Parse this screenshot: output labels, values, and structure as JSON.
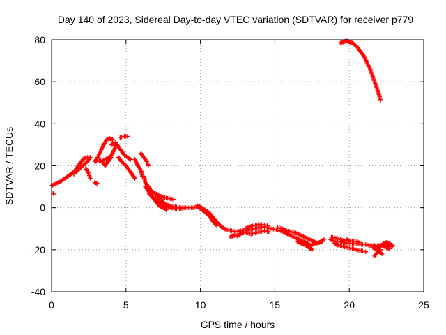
{
  "chart_data": {
    "type": "scatter",
    "title": "Day 140 of 2023, Sidereal Day-to-day VTEC variation (SDTVAR) for receiver p779",
    "xlabel": "GPS time / hours",
    "ylabel": "SDTVAR / TECUs",
    "xlim": [
      0,
      25
    ],
    "ylim": [
      -40,
      80
    ],
    "xticks": [
      "0",
      "5",
      "10",
      "15",
      "20",
      "25"
    ],
    "yticks": [
      "-40",
      "-20",
      "0",
      "20",
      "40",
      "60",
      "80"
    ],
    "grid": true,
    "marker": "plus",
    "series_color": "#ff0000",
    "series": [
      {
        "name": "SDTVAR",
        "tracks": [
          [
            [
              0.0,
              10.5
            ],
            [
              0.3,
              11.5
            ],
            [
              0.6,
              12.5
            ],
            [
              0.9,
              14
            ],
            [
              1.2,
              15.5
            ],
            [
              1.5,
              17
            ],
            [
              1.7,
              19
            ],
            [
              1.9,
              21
            ],
            [
              2.1,
              23
            ],
            [
              2.3,
              24
            ],
            [
              2.5,
              24
            ]
          ],
          [
            [
              1.5,
              16
            ],
            [
              1.8,
              18
            ],
            [
              2.1,
              20
            ],
            [
              2.4,
              22
            ],
            [
              2.6,
              24
            ]
          ],
          [
            [
              0.1,
              7
            ],
            [
              0.15,
              6.5
            ]
          ],
          [
            [
              2.3,
              19
            ],
            [
              2.5,
              16
            ],
            [
              2.6,
              14
            ]
          ],
          [
            [
              2.9,
              12
            ],
            [
              3.1,
              11.5
            ]
          ],
          [
            [
              2.9,
              22
            ],
            [
              3.1,
              24
            ],
            [
              3.3,
              27
            ],
            [
              3.5,
              30
            ],
            [
              3.7,
              32.5
            ],
            [
              3.9,
              33
            ],
            [
              4.1,
              32.5
            ]
          ],
          [
            [
              3.0,
              22
            ],
            [
              3.3,
              22.5
            ],
            [
              3.6,
              23
            ],
            [
              3.9,
              24
            ],
            [
              4.1,
              26
            ],
            [
              4.3,
              29
            ],
            [
              4.2,
              31
            ],
            [
              4.0,
              30
            ]
          ],
          [
            [
              3.4,
              22
            ],
            [
              3.6,
              20
            ],
            [
              3.8,
              22
            ],
            [
              4.0,
              24
            ]
          ],
          [
            [
              4.6,
              33.5
            ],
            [
              4.9,
              34
            ],
            [
              5.1,
              34
            ]
          ],
          [
            [
              4.5,
              24
            ],
            [
              4.7,
              22
            ],
            [
              5.0,
              20
            ],
            [
              5.2,
              18
            ],
            [
              5.4,
              16
            ]
          ],
          [
            [
              4.3,
              31
            ],
            [
              4.6,
              28
            ],
            [
              4.9,
              25
            ],
            [
              5.1,
              24
            ],
            [
              5.3,
              23
            ]
          ],
          [
            [
              5.6,
              23
            ],
            [
              5.8,
              20
            ],
            [
              6.0,
              18
            ],
            [
              6.1,
              15
            ]
          ],
          [
            [
              6.0,
              26
            ],
            [
              6.2,
              24
            ],
            [
              6.4,
              22
            ],
            [
              6.5,
              20
            ]
          ],
          [
            [
              5.2,
              18
            ],
            [
              5.4,
              16
            ],
            [
              5.6,
              14
            ]
          ],
          [
            [
              6.2,
              15
            ],
            [
              6.3,
              12
            ],
            [
              6.5,
              10
            ],
            [
              6.7,
              8
            ],
            [
              6.9,
              7
            ],
            [
              7.2,
              6
            ],
            [
              7.5,
              5
            ],
            [
              7.8,
              4.5
            ],
            [
              8.2,
              4
            ]
          ],
          [
            [
              6.3,
              10
            ],
            [
              6.5,
              8
            ],
            [
              6.7,
              6
            ],
            [
              6.9,
              4
            ],
            [
              7.1,
              2
            ],
            [
              7.3,
              0.5
            ],
            [
              7.5,
              0
            ],
            [
              7.7,
              -1
            ]
          ],
          [
            [
              6.5,
              7
            ],
            [
              6.8,
              5
            ],
            [
              7.1,
              3
            ],
            [
              7.4,
              2
            ],
            [
              7.7,
              1
            ]
          ],
          [
            [
              7.0,
              6
            ],
            [
              7.3,
              4
            ],
            [
              7.6,
              2
            ],
            [
              7.9,
              1
            ],
            [
              8.3,
              0.5
            ],
            [
              8.7,
              0
            ],
            [
              9.1,
              0
            ],
            [
              9.5,
              0
            ],
            [
              9.8,
              0.5
            ]
          ],
          [
            [
              7.6,
              1
            ],
            [
              8.0,
              0
            ],
            [
              8.4,
              -0.5
            ],
            [
              8.8,
              -0.5
            ]
          ],
          [
            [
              9.8,
              1
            ],
            [
              10.1,
              0
            ],
            [
              10.3,
              -1
            ],
            [
              10.6,
              -2.5
            ],
            [
              10.8,
              -4
            ],
            [
              11.0,
              -6
            ],
            [
              11.2,
              -7.5
            ],
            [
              11.4,
              -9
            ],
            [
              11.6,
              -10
            ],
            [
              11.8,
              -10.5
            ],
            [
              12.1,
              -11
            ],
            [
              12.4,
              -11.5
            ],
            [
              12.7,
              -11
            ],
            [
              13.0,
              -11
            ],
            [
              13.3,
              -10.5
            ],
            [
              13.6,
              -10
            ],
            [
              13.9,
              -9.5
            ],
            [
              14.2,
              -9
            ],
            [
              14.5,
              -9.5
            ],
            [
              14.8,
              -10
            ],
            [
              15.1,
              -10.5
            ],
            [
              15.4,
              -11
            ],
            [
              15.7,
              -12
            ],
            [
              16.0,
              -13
            ],
            [
              16.3,
              -14
            ],
            [
              16.6,
              -15
            ],
            [
              16.9,
              -16
            ],
            [
              17.2,
              -17
            ],
            [
              17.4,
              -18
            ]
          ],
          [
            [
              9.9,
              0
            ],
            [
              10.2,
              -1.5
            ],
            [
              10.5,
              -3
            ],
            [
              10.7,
              -5
            ],
            [
              10.9,
              -7
            ],
            [
              11.1,
              -8.5
            ]
          ],
          [
            [
              12.2,
              -13
            ],
            [
              12.5,
              -13.5
            ],
            [
              12.8,
              -12
            ],
            [
              13.1,
              -12
            ],
            [
              13.4,
              -12.5
            ],
            [
              13.7,
              -12
            ],
            [
              14.0,
              -11.5
            ],
            [
              14.3,
              -11
            ],
            [
              14.6,
              -11.5
            ]
          ],
          [
            [
              13.0,
              -10
            ],
            [
              13.3,
              -9
            ],
            [
              13.6,
              -8.5
            ],
            [
              13.9,
              -8
            ],
            [
              14.2,
              -8
            ],
            [
              14.5,
              -8.5
            ]
          ],
          [
            [
              12.0,
              -14
            ],
            [
              12.3,
              -13
            ]
          ],
          [
            [
              15.2,
              -9.5
            ],
            [
              15.5,
              -10
            ],
            [
              15.8,
              -11
            ],
            [
              16.1,
              -11.5
            ],
            [
              16.4,
              -12
            ],
            [
              16.7,
              -13
            ],
            [
              17.0,
              -14
            ],
            [
              17.3,
              -15
            ],
            [
              17.6,
              -16
            ],
            [
              17.9,
              -17
            ],
            [
              18.1,
              -16
            ],
            [
              18.3,
              -15
            ]
          ],
          [
            [
              16.5,
              -16
            ],
            [
              16.8,
              -17
            ],
            [
              17.1,
              -18
            ],
            [
              17.3,
              -19
            ],
            [
              17.5,
              -20
            ]
          ],
          [
            [
              17.4,
              -18
            ],
            [
              17.7,
              -17
            ],
            [
              18.0,
              -16.5
            ],
            [
              18.2,
              -16
            ]
          ],
          [
            [
              18.7,
              -15
            ],
            [
              19.0,
              -16
            ],
            [
              19.3,
              -16
            ],
            [
              19.6,
              -16.5
            ],
            [
              19.9,
              -17
            ],
            [
              20.2,
              -17
            ],
            [
              20.5,
              -17
            ],
            [
              20.8,
              -17.5
            ],
            [
              21.1,
              -17.5
            ],
            [
              21.4,
              -18
            ],
            [
              21.7,
              -18
            ],
            [
              22.0,
              -18
            ],
            [
              22.3,
              -17.5
            ],
            [
              22.6,
              -18
            ],
            [
              22.9,
              -18.5
            ]
          ],
          [
            [
              18.8,
              -14
            ],
            [
              19.1,
              -14.5
            ],
            [
              19.4,
              -15
            ],
            [
              19.7,
              -16
            ]
          ],
          [
            [
              19.0,
              -17
            ],
            [
              19.3,
              -18
            ],
            [
              19.6,
              -18.5
            ],
            [
              19.9,
              -19
            ],
            [
              20.2,
              -19.5
            ],
            [
              20.5,
              -20
            ],
            [
              20.8,
              -20.5
            ],
            [
              21.1,
              -21
            ]
          ],
          [
            [
              19.8,
              -15
            ],
            [
              20.1,
              -16
            ],
            [
              20.4,
              -16
            ],
            [
              20.7,
              -16.5
            ]
          ],
          [
            [
              21.6,
              -19
            ],
            [
              21.8,
              -20
            ],
            [
              22.0,
              -21
            ],
            [
              22.2,
              -22
            ]
          ],
          [
            [
              21.6,
              -18
            ],
            [
              21.9,
              -19
            ],
            [
              22.2,
              -18
            ],
            [
              22.5,
              -19
            ],
            [
              22.7,
              -19.5
            ]
          ],
          [
            [
              21.7,
              -23
            ],
            [
              21.9,
              -21
            ],
            [
              22.1,
              -20
            ]
          ],
          [
            [
              22.3,
              -17
            ],
            [
              22.5,
              -16.5
            ],
            [
              22.7,
              -17
            ],
            [
              22.9,
              -18
            ]
          ],
          [
            [
              19.6,
              79
            ],
            [
              19.8,
              79.5
            ],
            [
              20.0,
              79
            ],
            [
              20.2,
              78.5
            ],
            [
              20.4,
              77.5
            ],
            [
              20.6,
              76
            ],
            [
              20.8,
              74
            ],
            [
              21.0,
              72
            ],
            [
              21.2,
              69
            ],
            [
              21.4,
              66
            ],
            [
              21.6,
              62
            ],
            [
              21.8,
              58
            ],
            [
              22.0,
              54
            ],
            [
              22.1,
              51
            ]
          ],
          [
            [
              19.4,
              78.5
            ],
            [
              19.6,
              79
            ]
          ]
        ]
      }
    ]
  }
}
